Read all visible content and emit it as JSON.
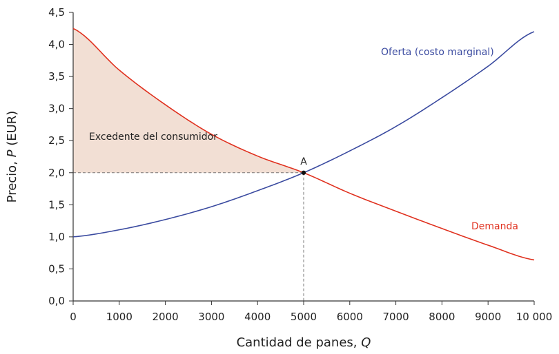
{
  "chart_data": {
    "type": "line",
    "xlabel": "Cantidad de panes, Q",
    "ylabel": "Precio, P (EUR)",
    "ylabel_prefix": "Precio, ",
    "ylabel_var": "P",
    "ylabel_suffix": " (EUR)",
    "xlabel_prefix": "Cantidad de panes, ",
    "xlabel_var": "Q",
    "xlim": [
      0,
      10000
    ],
    "ylim": [
      0,
      4.5
    ],
    "x_ticks": [
      0,
      1000,
      2000,
      3000,
      4000,
      5000,
      6000,
      7000,
      8000,
      9000,
      10000
    ],
    "x_tick_labels": [
      "0",
      "1000",
      "2000",
      "3000",
      "4000",
      "5000",
      "6000",
      "7000",
      "8000",
      "9000",
      "10 000"
    ],
    "y_ticks": [
      0,
      0.5,
      1.0,
      1.5,
      2.0,
      2.5,
      3.0,
      3.5,
      4.0,
      4.5
    ],
    "y_tick_labels": [
      "0,0",
      "0,5",
      "1,0",
      "1,5",
      "2,0",
      "2,5",
      "3,0",
      "3,5",
      "4,0",
      "4,5"
    ],
    "grid": false,
    "series": [
      {
        "name": "Oferta (costo marginal)",
        "color": "#3b4ba0",
        "x": [
          0,
          1000,
          2000,
          3000,
          4000,
          5000,
          6000,
          7000,
          8000,
          9000,
          10000
        ],
        "y": [
          1.0,
          1.11,
          1.27,
          1.47,
          1.72,
          2.0,
          2.34,
          2.72,
          3.17,
          3.66,
          4.2
        ]
      },
      {
        "name": "Demanda",
        "color": "#e0311f",
        "x": [
          0,
          1000,
          2000,
          3000,
          4000,
          5000,
          6000,
          7000,
          8000,
          9000,
          10000
        ],
        "y": [
          4.25,
          3.6,
          3.06,
          2.6,
          2.26,
          2.0,
          1.68,
          1.4,
          1.13,
          0.87,
          0.64
        ]
      }
    ],
    "equilibrium": {
      "label": "A",
      "x": 5000,
      "y": 2.0
    },
    "shaded_region": {
      "label": "Excedente del consumidor",
      "fill": "#f2dfd4"
    },
    "series_labels": {
      "supply": "Oferta (costo marginal)",
      "demand": "Demanda"
    }
  }
}
